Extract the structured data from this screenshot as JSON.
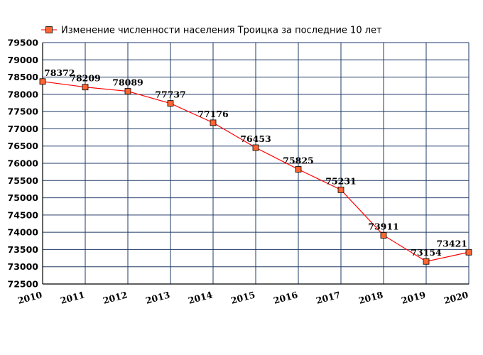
{
  "chart_data": {
    "type": "line",
    "title": "",
    "xlabel": "",
    "ylabel": "",
    "legend": "top-left",
    "grid": true,
    "ylim": [
      72500,
      79500
    ],
    "yticks": [
      "72500",
      "73000",
      "73500",
      "74000",
      "74500",
      "75000",
      "75500",
      "76000",
      "76500",
      "77000",
      "77500",
      "78000",
      "78500",
      "79000",
      "79500"
    ],
    "categories": [
      "2010",
      "2011",
      "2012",
      "2013",
      "2014",
      "2015",
      "2016",
      "2017",
      "2018",
      "2019",
      "2020"
    ],
    "series": [
      {
        "name": "Изменение численности населения Троицка за последние 10 лет",
        "values": [
          78372,
          78209,
          78089,
          77737,
          77176,
          76453,
          75825,
          75231,
          73911,
          73154,
          73421
        ],
        "labels": [
          "78372",
          "78209",
          "78089",
          "77737",
          "77176",
          "76453",
          "75825",
          "75231",
          "73911",
          "73154",
          "73421"
        ]
      }
    ],
    "colors": {
      "line": "#ff0000",
      "marker_fill": "#ff6633",
      "marker_stroke": "#000000",
      "grid": "#1f3864",
      "axis": "#000000"
    }
  }
}
